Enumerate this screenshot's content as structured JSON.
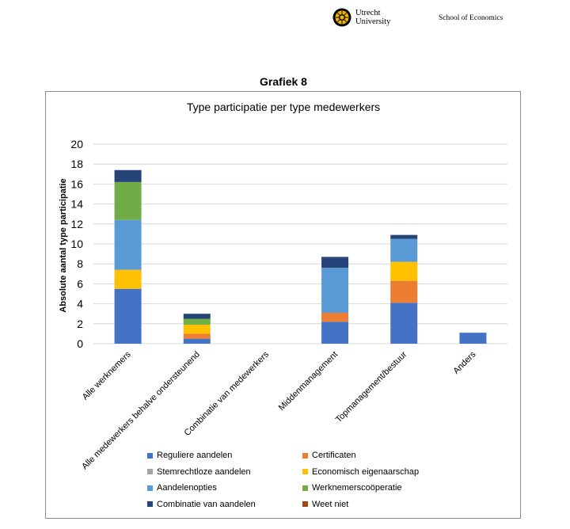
{
  "header": {
    "logo_line1": "Utrecht",
    "logo_line2": "University",
    "school": "School of Economics"
  },
  "figure_title": "Grafiek 8",
  "chart_data": {
    "type": "bar",
    "stacked": true,
    "title": "Type participatie per type medewerkers",
    "xlabel": "",
    "ylabel": "Absolute aantal type participatie",
    "ylim": [
      0,
      20
    ],
    "yticks": [
      0,
      2,
      4,
      6,
      8,
      10,
      12,
      14,
      16,
      18,
      20
    ],
    "grid": true,
    "legend_position": "bottom",
    "categories": [
      "Alle werknemers",
      "Alle medewerkers behalve ondersteunend",
      "Combinatie van medewerkers",
      "Middenmanagement",
      "Topmanagement/bestuur",
      "Anders"
    ],
    "series": [
      {
        "name": "Reguliere aandelen",
        "color": "#4472c4",
        "values": [
          5.5,
          0.5,
          0,
          2.2,
          4.1,
          1.1
        ]
      },
      {
        "name": "Certificaten",
        "color": "#ed7d31",
        "values": [
          0,
          0.5,
          0,
          0.9,
          2.2,
          0
        ]
      },
      {
        "name": "Stemrechtloze aandelen",
        "color": "#a5a5a5",
        "values": [
          0,
          0,
          0,
          0,
          0,
          0
        ]
      },
      {
        "name": "Economisch eigenaarschap",
        "color": "#ffc000",
        "values": [
          1.9,
          0.9,
          0,
          0,
          1.9,
          0
        ]
      },
      {
        "name": "Aandelenopties",
        "color": "#5b9bd5",
        "values": [
          5,
          0,
          0,
          4.5,
          2.3,
          0
        ]
      },
      {
        "name": "Werknemerscoöperatie",
        "color": "#70ad47",
        "values": [
          3.8,
          0.6,
          0,
          0,
          0,
          0
        ]
      },
      {
        "name": "Combinatie van aandelen",
        "color": "#264478",
        "values": [
          1.2,
          0.5,
          0,
          1.1,
          0.4,
          0
        ]
      },
      {
        "name": "Weet niet",
        "color": "#9e480e",
        "values": [
          0,
          0,
          0,
          0,
          0,
          0
        ]
      }
    ]
  }
}
